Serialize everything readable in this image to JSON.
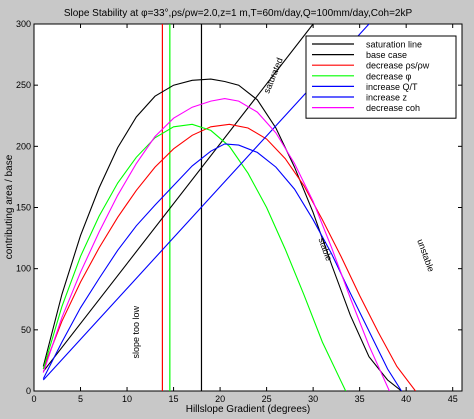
{
  "chart_data": {
    "type": "line",
    "title": "Slope Stability at φ=33°,ρs/ρw=2.0,z=1 m,T=60m/day,Q=100mm/day,Coh=2kP",
    "xlabel": "Hillslope Gradient (degrees)",
    "ylabel": "contributing area / base",
    "xlim": [
      0,
      46
    ],
    "ylim": [
      0,
      300
    ],
    "xticks": [
      0,
      5,
      10,
      15,
      20,
      25,
      30,
      35,
      40,
      45
    ],
    "yticks": [
      0,
      50,
      100,
      150,
      200,
      250,
      300
    ],
    "grid": false,
    "legend_position": "top-right",
    "series": [
      {
        "name": "saturation line",
        "color": "#000000",
        "x": [
          1,
          30
        ],
        "y": [
          16,
          300
        ]
      },
      {
        "name": "base case",
        "color": "#000000",
        "x": [
          1,
          3,
          5,
          7,
          9,
          11,
          13,
          15,
          17,
          19,
          20.5,
          22,
          24,
          26,
          28,
          30,
          32,
          34,
          36,
          38,
          39.5
        ],
        "y": [
          20,
          79,
          127,
          166,
          199,
          224,
          241,
          250,
          254,
          255,
          253,
          250,
          238,
          215,
          183,
          146,
          103,
          62,
          28,
          9,
          0
        ]
      },
      {
        "name": "decrease ρs/ρw",
        "color": "#ff0000",
        "x": [
          1,
          3,
          5,
          7,
          9,
          11,
          13,
          15,
          17,
          19,
          21,
          23,
          25,
          27,
          29,
          31,
          33,
          35,
          37,
          39,
          41
        ],
        "y": [
          18,
          57,
          89,
          117,
          142,
          164,
          183,
          198,
          209,
          216,
          218,
          215,
          206,
          190,
          168,
          140,
          110,
          78,
          48,
          20,
          0
        ]
      },
      {
        "name": "decrease φ",
        "color": "#00ff00",
        "x": [
          1,
          3,
          5,
          7,
          9,
          11,
          13,
          15,
          17,
          19,
          21,
          23,
          25,
          27,
          29,
          31,
          33,
          33.5
        ],
        "y": [
          18,
          69,
          110,
          143,
          170,
          191,
          207,
          216,
          218,
          213,
          200,
          178,
          150,
          116,
          79,
          40,
          8,
          0
        ]
      },
      {
        "name": "increase Q/T",
        "color": "#0000ff",
        "x": [
          1,
          3,
          5,
          7,
          9,
          11,
          13,
          15,
          17,
          19,
          20.5,
          22,
          24,
          26,
          28,
          30,
          32,
          34,
          36,
          38,
          39.5
        ],
        "y": [
          10,
          40,
          68,
          92,
          115,
          135,
          152,
          168,
          184,
          196,
          202,
          201,
          195,
          183,
          165,
          140,
          112,
          80,
          49,
          18,
          0
        ]
      },
      {
        "name": "increase z",
        "color": "#0000ff",
        "x": [
          1,
          36
        ],
        "y": [
          9,
          300
        ]
      },
      {
        "name": "decrease coh",
        "color": "#ff00ff",
        "x": [
          1,
          3,
          5,
          7,
          9,
          11,
          13,
          15,
          17,
          19,
          20.5,
          22,
          24,
          26,
          28,
          30,
          32,
          34,
          36,
          38.2
        ],
        "y": [
          15,
          60,
          97,
          130,
          160,
          186,
          208,
          223,
          232,
          237,
          239,
          237,
          228,
          211,
          186,
          155,
          117,
          76,
          37,
          0
        ]
      }
    ],
    "vlines": [
      {
        "x": 13.8,
        "color": "#ff0000"
      },
      {
        "x": 14.6,
        "color": "#00ff00"
      },
      {
        "x": 18,
        "color": "#000000"
      }
    ],
    "annotations": [
      {
        "text": "saturated",
        "x": 26,
        "y": 257,
        "angle": -68
      },
      {
        "text": "slope too low",
        "x": 11.3,
        "y": 48,
        "angle": -90
      },
      {
        "text": "stable",
        "x": 31,
        "y": 115,
        "angle": 70
      },
      {
        "text": "unstable",
        "x": 41.8,
        "y": 110,
        "angle": 70
      }
    ]
  }
}
